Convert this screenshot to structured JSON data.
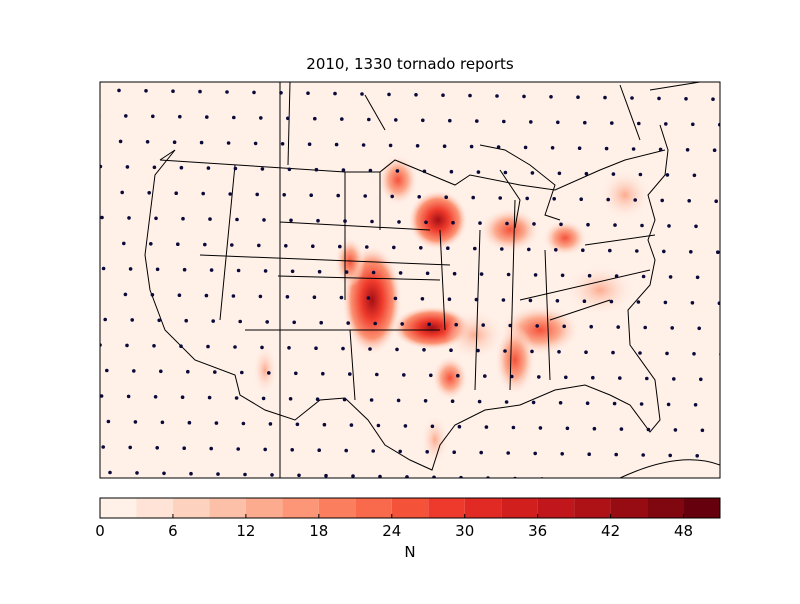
{
  "title": "2010, 1330 tornado reports",
  "colorbar": {
    "label": "N",
    "levels": [
      0,
      3,
      6,
      9,
      12,
      15,
      18,
      21,
      24,
      27,
      30,
      33,
      36,
      39,
      42,
      45,
      48,
      51
    ],
    "colors": [
      "#fff0e8",
      "#fee3d6",
      "#fdd2bf",
      "#fcbfa7",
      "#fcab8f",
      "#fc9676",
      "#fb7f5e",
      "#f9694c",
      "#f5523a",
      "#ee3a2c",
      "#e12a23",
      "#d11f1e",
      "#c1161b",
      "#ae1217",
      "#970b13",
      "#800610",
      "#67000d"
    ],
    "ticks": [
      0,
      6,
      12,
      18,
      24,
      30,
      36,
      42,
      48
    ]
  }
}
